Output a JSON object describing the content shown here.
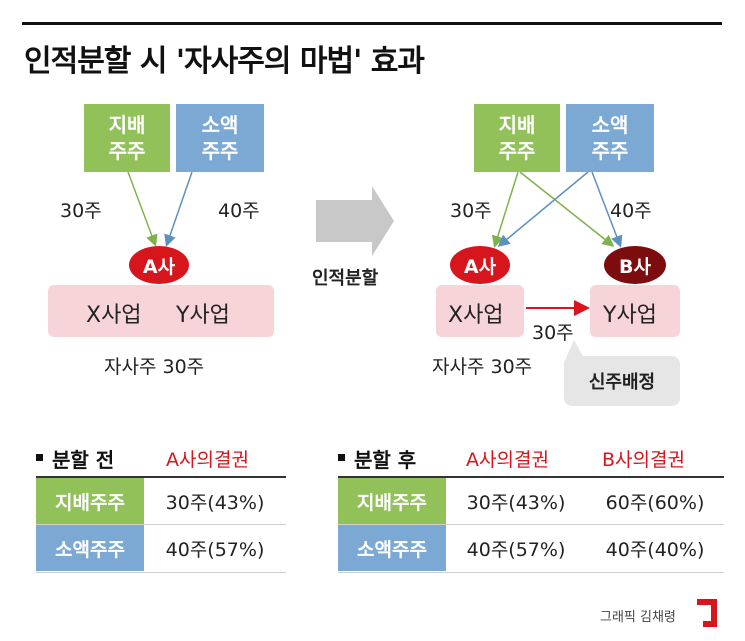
{
  "title": "인적분할 시 '자사주의 마법' 효과",
  "before": {
    "controlling": "지배\n주주",
    "minority": "소액\n주주",
    "controlling_share": "30주",
    "minority_share": "40주",
    "company": "A사",
    "biz_x": "X사업",
    "biz_y": "Y사업",
    "treasury": "자사주 30주"
  },
  "arrow_label": "인적분할",
  "after": {
    "controlling": "지배\n주주",
    "minority": "소액\n주주",
    "controlling_share": "30주",
    "minority_share": "40주",
    "company_a": "A사",
    "company_b": "B사",
    "biz_x": "X사업",
    "biz_y": "Y사업",
    "transfer": "30주",
    "treasury": "자사주 30주",
    "new_share": "신주배정"
  },
  "table_before": {
    "heading": "분할 전",
    "col": "A사의결권",
    "rows": [
      {
        "label": "지배주주",
        "a": "30주(43%)"
      },
      {
        "label": "소액주주",
        "a": "40주(57%)"
      }
    ]
  },
  "table_after": {
    "heading": "분할 후",
    "col_a": "A사의결권",
    "col_b": "B사의결권",
    "rows": [
      {
        "label": "지배주주",
        "a": "30주(43%)",
        "b": "60주(60%)"
      },
      {
        "label": "소액주주",
        "a": "40주(57%)",
        "b": "40주(40%)"
      }
    ]
  },
  "credit": "그래픽 김채령",
  "colors": {
    "green": "#92c15a",
    "blue": "#7ba9d4",
    "red": "#d7151d",
    "dark_red": "#7d0c0e",
    "pink": "#f6d4d8"
  }
}
